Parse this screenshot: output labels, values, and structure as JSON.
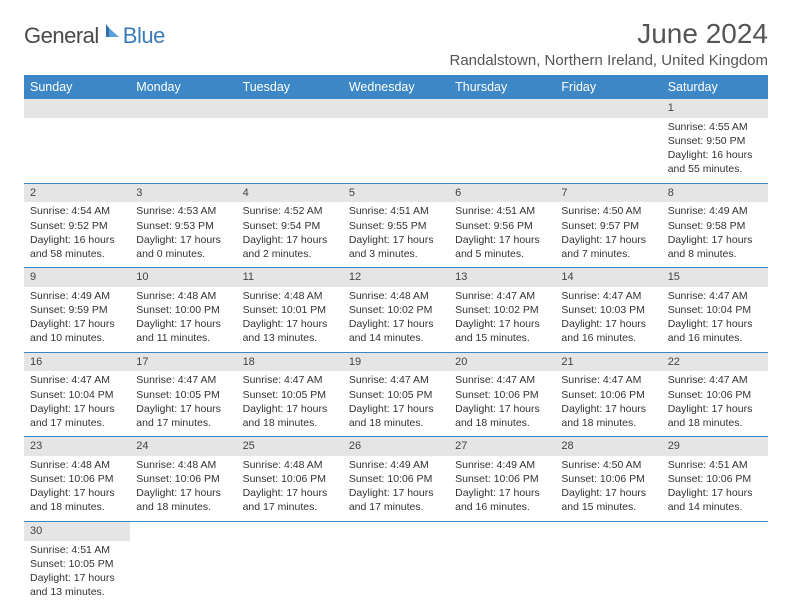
{
  "logo": {
    "part1": "General",
    "part2": "Blue"
  },
  "title": "June 2024",
  "location": "Randalstown, Northern Ireland, United Kingdom",
  "colors": {
    "header_bg": "#3d87c7",
    "header_text": "#ffffff",
    "daynum_bg": "#e5e5e5",
    "text": "#333333",
    "rule": "#3d87c7",
    "logo_gray": "#4a4a4a",
    "logo_blue": "#3a7cb8"
  },
  "weekdays": [
    "Sunday",
    "Monday",
    "Tuesday",
    "Wednesday",
    "Thursday",
    "Friday",
    "Saturday"
  ],
  "weeks": [
    [
      null,
      null,
      null,
      null,
      null,
      null,
      {
        "n": "1",
        "sr": "Sunrise: 4:55 AM",
        "ss": "Sunset: 9:50 PM",
        "d1": "Daylight: 16 hours",
        "d2": "and 55 minutes."
      }
    ],
    [
      {
        "n": "2",
        "sr": "Sunrise: 4:54 AM",
        "ss": "Sunset: 9:52 PM",
        "d1": "Daylight: 16 hours",
        "d2": "and 58 minutes."
      },
      {
        "n": "3",
        "sr": "Sunrise: 4:53 AM",
        "ss": "Sunset: 9:53 PM",
        "d1": "Daylight: 17 hours",
        "d2": "and 0 minutes."
      },
      {
        "n": "4",
        "sr": "Sunrise: 4:52 AM",
        "ss": "Sunset: 9:54 PM",
        "d1": "Daylight: 17 hours",
        "d2": "and 2 minutes."
      },
      {
        "n": "5",
        "sr": "Sunrise: 4:51 AM",
        "ss": "Sunset: 9:55 PM",
        "d1": "Daylight: 17 hours",
        "d2": "and 3 minutes."
      },
      {
        "n": "6",
        "sr": "Sunrise: 4:51 AM",
        "ss": "Sunset: 9:56 PM",
        "d1": "Daylight: 17 hours",
        "d2": "and 5 minutes."
      },
      {
        "n": "7",
        "sr": "Sunrise: 4:50 AM",
        "ss": "Sunset: 9:57 PM",
        "d1": "Daylight: 17 hours",
        "d2": "and 7 minutes."
      },
      {
        "n": "8",
        "sr": "Sunrise: 4:49 AM",
        "ss": "Sunset: 9:58 PM",
        "d1": "Daylight: 17 hours",
        "d2": "and 8 minutes."
      }
    ],
    [
      {
        "n": "9",
        "sr": "Sunrise: 4:49 AM",
        "ss": "Sunset: 9:59 PM",
        "d1": "Daylight: 17 hours",
        "d2": "and 10 minutes."
      },
      {
        "n": "10",
        "sr": "Sunrise: 4:48 AM",
        "ss": "Sunset: 10:00 PM",
        "d1": "Daylight: 17 hours",
        "d2": "and 11 minutes."
      },
      {
        "n": "11",
        "sr": "Sunrise: 4:48 AM",
        "ss": "Sunset: 10:01 PM",
        "d1": "Daylight: 17 hours",
        "d2": "and 13 minutes."
      },
      {
        "n": "12",
        "sr": "Sunrise: 4:48 AM",
        "ss": "Sunset: 10:02 PM",
        "d1": "Daylight: 17 hours",
        "d2": "and 14 minutes."
      },
      {
        "n": "13",
        "sr": "Sunrise: 4:47 AM",
        "ss": "Sunset: 10:02 PM",
        "d1": "Daylight: 17 hours",
        "d2": "and 15 minutes."
      },
      {
        "n": "14",
        "sr": "Sunrise: 4:47 AM",
        "ss": "Sunset: 10:03 PM",
        "d1": "Daylight: 17 hours",
        "d2": "and 16 minutes."
      },
      {
        "n": "15",
        "sr": "Sunrise: 4:47 AM",
        "ss": "Sunset: 10:04 PM",
        "d1": "Daylight: 17 hours",
        "d2": "and 16 minutes."
      }
    ],
    [
      {
        "n": "16",
        "sr": "Sunrise: 4:47 AM",
        "ss": "Sunset: 10:04 PM",
        "d1": "Daylight: 17 hours",
        "d2": "and 17 minutes."
      },
      {
        "n": "17",
        "sr": "Sunrise: 4:47 AM",
        "ss": "Sunset: 10:05 PM",
        "d1": "Daylight: 17 hours",
        "d2": "and 17 minutes."
      },
      {
        "n": "18",
        "sr": "Sunrise: 4:47 AM",
        "ss": "Sunset: 10:05 PM",
        "d1": "Daylight: 17 hours",
        "d2": "and 18 minutes."
      },
      {
        "n": "19",
        "sr": "Sunrise: 4:47 AM",
        "ss": "Sunset: 10:05 PM",
        "d1": "Daylight: 17 hours",
        "d2": "and 18 minutes."
      },
      {
        "n": "20",
        "sr": "Sunrise: 4:47 AM",
        "ss": "Sunset: 10:06 PM",
        "d1": "Daylight: 17 hours",
        "d2": "and 18 minutes."
      },
      {
        "n": "21",
        "sr": "Sunrise: 4:47 AM",
        "ss": "Sunset: 10:06 PM",
        "d1": "Daylight: 17 hours",
        "d2": "and 18 minutes."
      },
      {
        "n": "22",
        "sr": "Sunrise: 4:47 AM",
        "ss": "Sunset: 10:06 PM",
        "d1": "Daylight: 17 hours",
        "d2": "and 18 minutes."
      }
    ],
    [
      {
        "n": "23",
        "sr": "Sunrise: 4:48 AM",
        "ss": "Sunset: 10:06 PM",
        "d1": "Daylight: 17 hours",
        "d2": "and 18 minutes."
      },
      {
        "n": "24",
        "sr": "Sunrise: 4:48 AM",
        "ss": "Sunset: 10:06 PM",
        "d1": "Daylight: 17 hours",
        "d2": "and 18 minutes."
      },
      {
        "n": "25",
        "sr": "Sunrise: 4:48 AM",
        "ss": "Sunset: 10:06 PM",
        "d1": "Daylight: 17 hours",
        "d2": "and 17 minutes."
      },
      {
        "n": "26",
        "sr": "Sunrise: 4:49 AM",
        "ss": "Sunset: 10:06 PM",
        "d1": "Daylight: 17 hours",
        "d2": "and 17 minutes."
      },
      {
        "n": "27",
        "sr": "Sunrise: 4:49 AM",
        "ss": "Sunset: 10:06 PM",
        "d1": "Daylight: 17 hours",
        "d2": "and 16 minutes."
      },
      {
        "n": "28",
        "sr": "Sunrise: 4:50 AM",
        "ss": "Sunset: 10:06 PM",
        "d1": "Daylight: 17 hours",
        "d2": "and 15 minutes."
      },
      {
        "n": "29",
        "sr": "Sunrise: 4:51 AM",
        "ss": "Sunset: 10:06 PM",
        "d1": "Daylight: 17 hours",
        "d2": "and 14 minutes."
      }
    ],
    [
      {
        "n": "30",
        "sr": "Sunrise: 4:51 AM",
        "ss": "Sunset: 10:05 PM",
        "d1": "Daylight: 17 hours",
        "d2": "and 13 minutes."
      },
      null,
      null,
      null,
      null,
      null,
      null
    ]
  ]
}
